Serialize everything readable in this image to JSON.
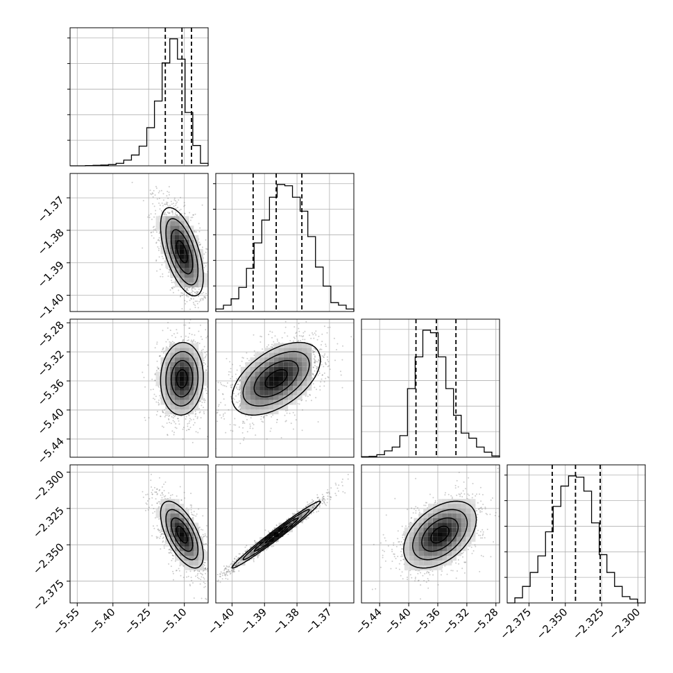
{
  "chart_data": {
    "type": "corner",
    "parameters": 4,
    "ranges": [
      [
        -5.58,
        -5.0
      ],
      [
        -1.405,
        -1.3625
      ],
      [
        -5.465,
        -5.275
      ],
      [
        -2.39,
        -2.295
      ]
    ],
    "x_ticks": [
      [
        "−5.55",
        "−5.40",
        "−5.25",
        "−5.10"
      ],
      [
        "−1.40",
        "−1.39",
        "−1.38",
        "−1.37"
      ],
      [
        "−5.44",
        "−5.40",
        "−5.36",
        "−5.32",
        "−5.28"
      ],
      [
        "−2.375",
        "−2.350",
        "−2.325",
        "−2.300"
      ]
    ],
    "x_tick_values": [
      [
        -5.55,
        -5.4,
        -5.25,
        -5.1
      ],
      [
        -1.4,
        -1.39,
        -1.38,
        -1.37
      ],
      [
        -5.44,
        -5.4,
        -5.36,
        -5.32,
        -5.28
      ],
      [
        -2.375,
        -2.35,
        -2.325,
        -2.3
      ]
    ],
    "quantiles": [
      [
        -5.18,
        -5.11,
        -5.07
      ],
      [
        -1.3935,
        -1.3864,
        -1.3785
      ],
      [
        -5.39,
        -5.362,
        -5.335
      ],
      [
        -2.359,
        -2.343,
        -2.326
      ]
    ],
    "histograms": [
      [
        0.0,
        0.0,
        0.002,
        0.004,
        0.006,
        0.01,
        0.02,
        0.045,
        0.085,
        0.155,
        0.3,
        0.51,
        0.81,
        1.0,
        0.84,
        0.42,
        0.16,
        0.02
      ],
      [
        0.02,
        0.05,
        0.1,
        0.19,
        0.34,
        0.54,
        0.72,
        0.9,
        1.0,
        0.99,
        0.9,
        0.79,
        0.59,
        0.35,
        0.2,
        0.07,
        0.05,
        0.02
      ],
      [
        0.004,
        0.007,
        0.02,
        0.05,
        0.08,
        0.17,
        0.54,
        0.79,
        1.0,
        0.98,
        0.79,
        0.54,
        0.33,
        0.19,
        0.15,
        0.08,
        0.04,
        0.01
      ],
      [
        0.0,
        0.04,
        0.13,
        0.24,
        0.37,
        0.56,
        0.76,
        0.92,
        1.0,
        0.99,
        0.88,
        0.63,
        0.38,
        0.24,
        0.13,
        0.05,
        0.03,
        0.0
      ]
    ],
    "pairs": [
      {
        "row": 1,
        "col": 0,
        "center": [
          -5.11,
          -1.3866
        ],
        "sigma": [
          0.045,
          0.0068
        ],
        "rho": -0.58
      },
      {
        "row": 2,
        "col": 0,
        "center": [
          -5.11,
          -5.357
        ],
        "sigma": [
          0.045,
          0.025
        ],
        "rho": 0.05
      },
      {
        "row": 2,
        "col": 1,
        "center": [
          -1.3864,
          -5.357
        ],
        "sigma": [
          0.0068,
          0.025
        ],
        "rho": 0.52
      },
      {
        "row": 3,
        "col": 0,
        "center": [
          -5.11,
          -2.343
        ],
        "sigma": [
          0.045,
          0.0115
        ],
        "rho": -0.62
      },
      {
        "row": 3,
        "col": 1,
        "center": [
          -1.3864,
          -2.343
        ],
        "sigma": [
          0.0068,
          0.0115
        ],
        "rho": 0.985
      },
      {
        "row": 3,
        "col": 2,
        "center": [
          -5.357,
          -2.343
        ],
        "sigma": [
          0.025,
          0.0115
        ],
        "rho": 0.45
      }
    ],
    "y_ticks": {
      "1": [
        "−1.37",
        "−1.38",
        "−1.39",
        "−1.40"
      ],
      "2": [
        "−5.28",
        "−5.32",
        "−5.36",
        "−5.40",
        "−5.44"
      ],
      "3": [
        "−2.300",
        "−2.325",
        "−2.350",
        "−2.375"
      ]
    },
    "y_tick_values": {
      "1": [
        -1.37,
        -1.38,
        -1.39,
        -1.4
      ],
      "2": [
        -5.28,
        -5.32,
        -5.36,
        -5.4,
        -5.44
      ],
      "3": [
        -2.3,
        -2.325,
        -2.35,
        -2.375
      ]
    },
    "grid": true,
    "colors": {
      "line": "#000000",
      "grid": "#b0b0b0",
      "points": "#6e6e6e"
    }
  }
}
